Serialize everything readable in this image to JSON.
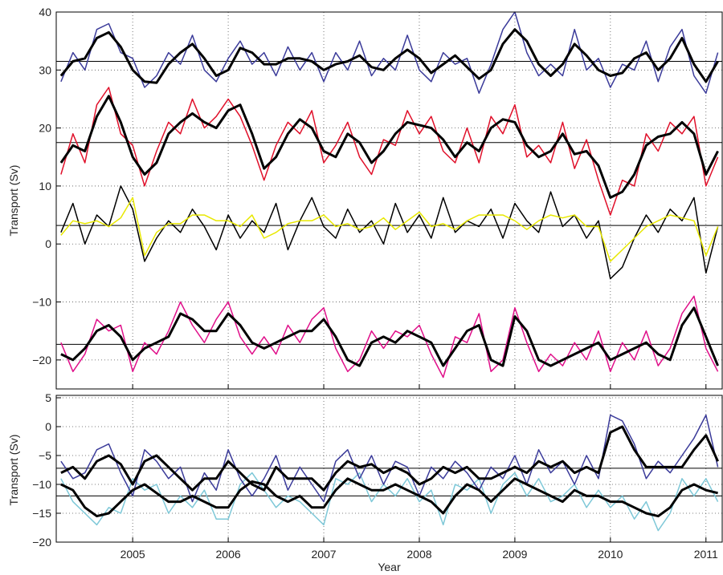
{
  "chart_data": [
    {
      "type": "line",
      "ylabel": "Transport (Sv)",
      "x": [
        2004.25,
        2004.375,
        2004.5,
        2004.625,
        2004.75,
        2004.875,
        2005,
        2005.125,
        2005.25,
        2005.375,
        2005.5,
        2005.625,
        2005.75,
        2005.875,
        2006,
        2006.125,
        2006.25,
        2006.375,
        2006.5,
        2006.625,
        2006.75,
        2006.875,
        2007,
        2007.125,
        2007.25,
        2007.375,
        2007.5,
        2007.625,
        2007.75,
        2007.875,
        2008,
        2008.125,
        2008.25,
        2008.375,
        2008.5,
        2008.625,
        2008.75,
        2008.875,
        2009,
        2009.125,
        2009.25,
        2009.375,
        2009.5,
        2009.625,
        2009.75,
        2009.875,
        2010,
        2010.125,
        2010.25,
        2010.375,
        2010.5,
        2010.625,
        2010.75,
        2010.875,
        2011,
        2011.125
      ],
      "xlim": [
        2004.2,
        2011.17
      ],
      "xticks": [
        2005,
        2006,
        2007,
        2008,
        2009,
        2010,
        2011
      ],
      "ylim": [
        -25,
        40
      ],
      "yticks": [
        40,
        30,
        20,
        10,
        0,
        {
          "value": -10,
          "label": "−10"
        },
        {
          "value": -20,
          "label": "−20"
        }
      ],
      "grid": true,
      "reference_lines": [
        31.5,
        17.5,
        3.2,
        -17.3
      ],
      "series": [
        {
          "color": "#3b3b9a",
          "width": 1.5,
          "values": [
            28,
            33,
            30,
            37,
            38,
            33,
            32,
            27,
            29,
            33,
            31,
            36,
            30,
            28,
            32,
            35,
            31,
            33,
            29,
            34,
            30,
            33,
            28,
            33,
            30,
            35,
            29,
            32,
            30,
            36,
            30,
            28,
            33,
            31,
            32,
            26,
            31,
            37,
            40,
            33,
            29,
            31,
            29,
            37,
            30,
            32,
            27,
            31,
            30,
            35,
            28,
            34,
            37,
            29,
            26,
            33
          ]
        },
        {
          "color": "#000000",
          "width": 3,
          "values": [
            29,
            31.5,
            32,
            35.5,
            36.5,
            34,
            30,
            28,
            27.8,
            31,
            33,
            34.5,
            32,
            29,
            30,
            33.8,
            33,
            31,
            31,
            32,
            32,
            31.5,
            30,
            31,
            31.5,
            32.5,
            30.5,
            30,
            32,
            33.5,
            32,
            29.5,
            31,
            32.5,
            30.5,
            28.5,
            30,
            34.5,
            37,
            35,
            31,
            29,
            31,
            34.5,
            32.5,
            30,
            29,
            29.5,
            32,
            33,
            30,
            32,
            35.5,
            31,
            28,
            31.5
          ]
        },
        {
          "color": "#e0102a",
          "width": 1.5,
          "values": [
            12,
            19,
            14,
            24,
            27,
            19,
            17,
            10,
            16,
            21,
            19,
            25,
            20,
            22,
            25,
            22,
            17,
            11,
            17,
            21,
            19,
            23,
            14,
            17,
            21,
            15,
            12,
            18,
            17,
            23,
            19,
            22,
            16,
            14,
            20,
            14,
            22,
            19,
            24,
            15,
            17,
            14,
            21,
            13,
            18,
            11,
            5,
            11,
            10,
            19,
            16,
            21,
            19,
            22,
            10,
            15
          ]
        },
        {
          "color": "#000000",
          "width": 3,
          "values": [
            14,
            17,
            16,
            22,
            25.5,
            21,
            15,
            12,
            14,
            19,
            21,
            22.5,
            21,
            20,
            23,
            24,
            19,
            13,
            15,
            19,
            21.5,
            20,
            16,
            15,
            19,
            17.5,
            14,
            16,
            19,
            21,
            20.5,
            20,
            18,
            15,
            17.5,
            16,
            20,
            21.5,
            21,
            17,
            15,
            16,
            19,
            15.5,
            16,
            13.5,
            8,
            9,
            12,
            17,
            18.5,
            19,
            21,
            19,
            12,
            16
          ]
        },
        {
          "color": "#000000",
          "width": 1.5,
          "values": [
            2,
            7,
            0,
            5,
            3,
            10,
            6,
            -3,
            1,
            4,
            2,
            6,
            3,
            -1,
            5,
            1,
            4,
            2,
            7,
            -1,
            4,
            8,
            3,
            1,
            6,
            2,
            4,
            0,
            7,
            2,
            5,
            1,
            8,
            2,
            4,
            3,
            6,
            1,
            7,
            4,
            2,
            9,
            3,
            5,
            1,
            4,
            -6,
            -4,
            1,
            5,
            2,
            6,
            4,
            8,
            -5,
            3
          ]
        },
        {
          "color": "#e8e800",
          "width": 1.5,
          "values": [
            1.5,
            4,
            3.5,
            4,
            3,
            4.5,
            8,
            -2,
            2,
            3.5,
            3.5,
            5,
            5,
            4,
            4,
            3,
            5,
            1,
            2,
            3.5,
            4,
            4,
            5,
            3,
            3.5,
            2.5,
            3,
            4.5,
            2.5,
            4,
            5.5,
            3,
            3.5,
            2.5,
            4,
            5,
            5,
            5,
            4,
            2.5,
            4,
            5,
            4.5,
            5,
            3,
            3,
            -3,
            -1,
            1,
            3,
            4,
            5,
            4.5,
            4,
            -2,
            3
          ]
        },
        {
          "color": "#e0108a",
          "width": 1.5,
          "values": [
            -17,
            -22,
            -19,
            -13,
            -15,
            -14,
            -22,
            -17,
            -19,
            -15,
            -10,
            -14,
            -17,
            -13,
            -10,
            -16,
            -19,
            -16,
            -19,
            -14,
            -17,
            -13,
            -11,
            -18,
            -22,
            -20,
            -15,
            -18,
            -15,
            -16,
            -14,
            -19,
            -23,
            -16,
            -17,
            -12,
            -22,
            -20,
            -11,
            -17,
            -22,
            -19,
            -21,
            -17,
            -20,
            -15,
            -22,
            -17,
            -20,
            -15,
            -21,
            -18,
            -12,
            -9,
            -18,
            -22
          ]
        },
        {
          "color": "#000000",
          "width": 3,
          "values": [
            -19,
            -20,
            -18,
            -15,
            -14,
            -16,
            -20,
            -18,
            -17,
            -16,
            -12,
            -13,
            -15,
            -15,
            -12,
            -14,
            -17,
            -18,
            -17,
            -16,
            -15,
            -15,
            -13,
            -16,
            -20,
            -21,
            -17,
            -16,
            -17,
            -15,
            -16,
            -17,
            -21,
            -18,
            -15,
            -14,
            -20,
            -21,
            -12.5,
            -15,
            -20,
            -21,
            -20,
            -19,
            -18,
            -17,
            -20,
            -19,
            -18,
            -17,
            -19,
            -20,
            -14,
            -11,
            -16,
            -21
          ]
        }
      ]
    },
    {
      "type": "line",
      "ylabel": "Transport (Sv)",
      "xlabel": "Year",
      "x": [
        2004.25,
        2004.375,
        2004.5,
        2004.625,
        2004.75,
        2004.875,
        2005,
        2005.125,
        2005.25,
        2005.375,
        2005.5,
        2005.625,
        2005.75,
        2005.875,
        2006,
        2006.125,
        2006.25,
        2006.375,
        2006.5,
        2006.625,
        2006.75,
        2006.875,
        2007,
        2007.125,
        2007.25,
        2007.375,
        2007.5,
        2007.625,
        2007.75,
        2007.875,
        2008,
        2008.125,
        2008.25,
        2008.375,
        2008.5,
        2008.625,
        2008.75,
        2008.875,
        2009,
        2009.125,
        2009.25,
        2009.375,
        2009.5,
        2009.625,
        2009.75,
        2009.875,
        2010,
        2010.125,
        2010.25,
        2010.375,
        2010.5,
        2010.625,
        2010.75,
        2010.875,
        2011,
        2011.125
      ],
      "xlim": [
        2004.2,
        2011.17
      ],
      "xticks": [
        2005,
        2006,
        2007,
        2008,
        2009,
        2010,
        2011
      ],
      "ylim": [
        -20,
        5
      ],
      "yticks": [
        5,
        0,
        {
          "value": -5,
          "label": "−5"
        },
        {
          "value": -10,
          "label": "−10"
        },
        {
          "value": -15,
          "label": "−15"
        },
        {
          "value": -20,
          "label": "−20"
        }
      ],
      "grid": true,
      "reference_lines": [
        -7.2,
        -12
      ],
      "series": [
        {
          "color": "#7ec8d8",
          "width": 1.5,
          "values": [
            -9,
            -13,
            -15,
            -17,
            -14,
            -15,
            -9,
            -11,
            -10,
            -15,
            -12,
            -14,
            -11,
            -16,
            -16,
            -10,
            -8,
            -11,
            -14,
            -12,
            -13,
            -15,
            -17,
            -9,
            -10,
            -8,
            -13,
            -10,
            -12,
            -9,
            -13,
            -11,
            -17,
            -10,
            -11,
            -9,
            -15,
            -10,
            -8,
            -12,
            -9,
            -13,
            -12,
            -10,
            -14,
            -11,
            -14,
            -12,
            -16,
            -13,
            -18,
            -15,
            -9,
            -12,
            -9,
            -13
          ]
        },
        {
          "color": "#3b3b9a",
          "width": 1.5,
          "values": [
            -6,
            -9,
            -8,
            -4,
            -3,
            -8,
            -12,
            -4,
            -6,
            -9,
            -7,
            -13,
            -8,
            -11,
            -4,
            -9,
            -12,
            -9,
            -5,
            -11,
            -7,
            -10,
            -13,
            -6,
            -4,
            -9,
            -5,
            -10,
            -6,
            -7,
            -12,
            -7,
            -9,
            -6,
            -8,
            -11,
            -7,
            -9,
            -5,
            -10,
            -4,
            -8,
            -6,
            -10,
            -5,
            -9,
            2,
            1,
            -3,
            -9,
            -6,
            -8,
            -5,
            -2,
            2,
            -7
          ]
        },
        {
          "color": "#000000",
          "width": 3,
          "values": [
            -8,
            -7,
            -9,
            -6,
            -5,
            -6.5,
            -10,
            -6,
            -5,
            -7,
            -9,
            -11,
            -9,
            -9,
            -6,
            -8,
            -10,
            -11,
            -7,
            -9,
            -9,
            -9,
            -11,
            -8,
            -6,
            -7,
            -6.5,
            -8,
            -7,
            -8,
            -10,
            -9,
            -7,
            -8,
            -7,
            -9,
            -9,
            -8,
            -7,
            -8,
            -6,
            -7,
            -6,
            -8,
            -7,
            -8,
            -1,
            0,
            -4,
            -7,
            -7,
            -7,
            -7,
            -4,
            -1.5,
            -6
          ]
        },
        {
          "color": "#000000",
          "width": 3,
          "values": [
            -10,
            -11,
            -14,
            -15.5,
            -15,
            -13,
            -11,
            -10,
            -11.5,
            -13,
            -13,
            -12,
            -13,
            -14,
            -14,
            -11,
            -9.5,
            -10,
            -12,
            -13,
            -12,
            -14,
            -14,
            -11,
            -9,
            -10,
            -11,
            -11,
            -10,
            -11,
            -12,
            -13,
            -15,
            -12,
            -10,
            -11,
            -13,
            -11,
            -9,
            -10,
            -11,
            -12,
            -13,
            -11,
            -12,
            -12,
            -13,
            -13,
            -14,
            -15,
            -15.5,
            -14,
            -11,
            -10,
            -11,
            -11.5
          ]
        }
      ]
    }
  ]
}
